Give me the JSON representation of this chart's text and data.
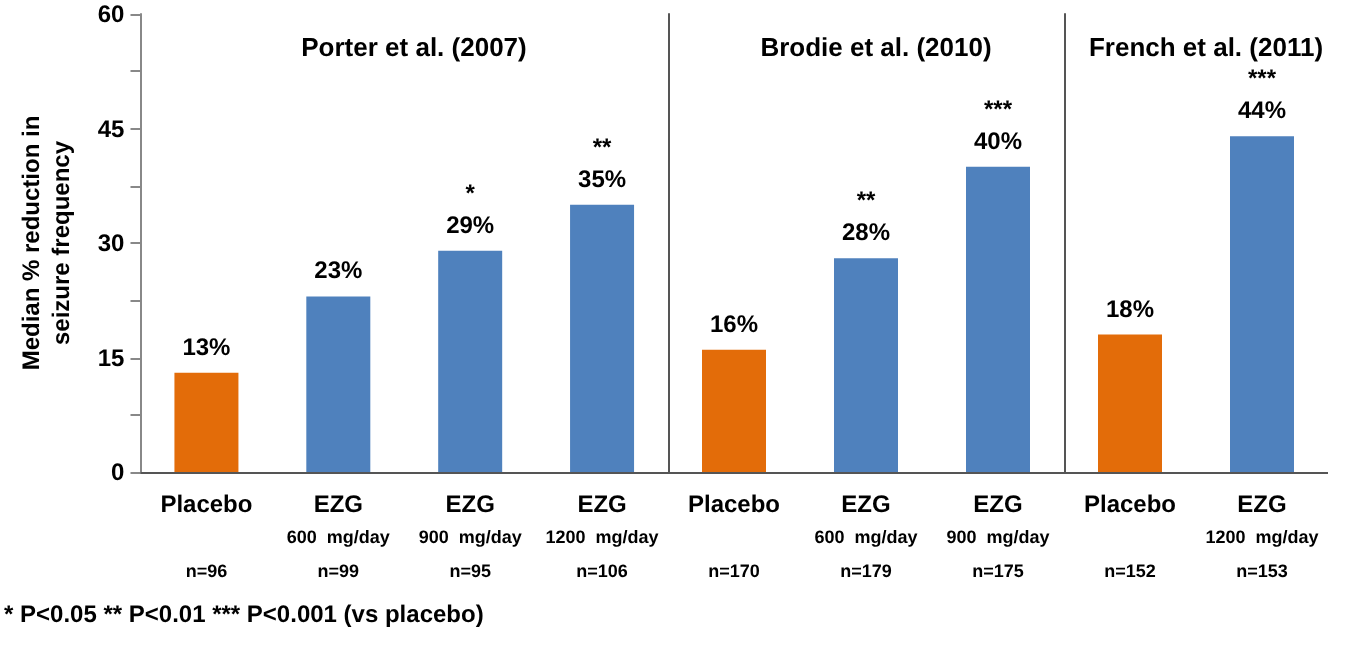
{
  "chart_data": [
    {
      "type": "bar",
      "title": "Porter et al. (2007)",
      "ylabel": "Median % reduction in seizure frequency",
      "categories": [
        "Placebo\n\nn=96",
        "EZG\n600  mg/day\nn=99",
        "EZG\n900  mg/day\nn=95",
        "EZG\n1200  mg/day\nn=106"
      ],
      "values": [
        13,
        23,
        29,
        35
      ],
      "colors": [
        "#e36c09",
        "#4f81bd",
        "#4f81bd",
        "#4f81bd"
      ],
      "value_labels": [
        "13%",
        "23%",
        "*\n29%",
        "**\n35%"
      ],
      "ylim": [
        0,
        60
      ],
      "yticks": [
        0,
        {
          "value": 7.5,
          "label": null
        },
        15,
        {
          "value": 22.5,
          "label": null
        },
        30,
        {
          "value": 37.5,
          "label": null
        },
        45,
        {
          "value": 52.5,
          "label": null
        },
        60
      ],
      "annotations": [
        "* P<0.05 ** P<0.01  *** P<0.001  (vs placebo)"
      ]
    },
    {
      "type": "bar",
      "title": "Brodie et al. (2010)",
      "categories": [
        "Placebo\n\nn=170",
        "EZG\n600  mg/day\nn=179",
        "EZG\n900  mg/day\nn=175"
      ],
      "values": [
        16,
        28,
        40
      ],
      "colors": [
        "#e36c09",
        "#4f81bd",
        "#4f81bd"
      ],
      "value_labels": [
        "16%",
        "**\n28%",
        "***\n40%"
      ],
      "ylim": [
        0,
        60
      ],
      "tick_labels": "x"
    },
    {
      "type": "bar",
      "title": "French et al. (2011)",
      "categories": [
        "Placebo\n\nn=152",
        "EZG\n1200  mg/day\nn=153"
      ],
      "values": [
        18,
        44
      ],
      "colors": [
        "#e36c09",
        "#4f81bd"
      ],
      "value_labels": [
        "18%",
        "***\n44%"
      ],
      "ylim": [
        0,
        60
      ],
      "tick_labels": "x"
    }
  ]
}
